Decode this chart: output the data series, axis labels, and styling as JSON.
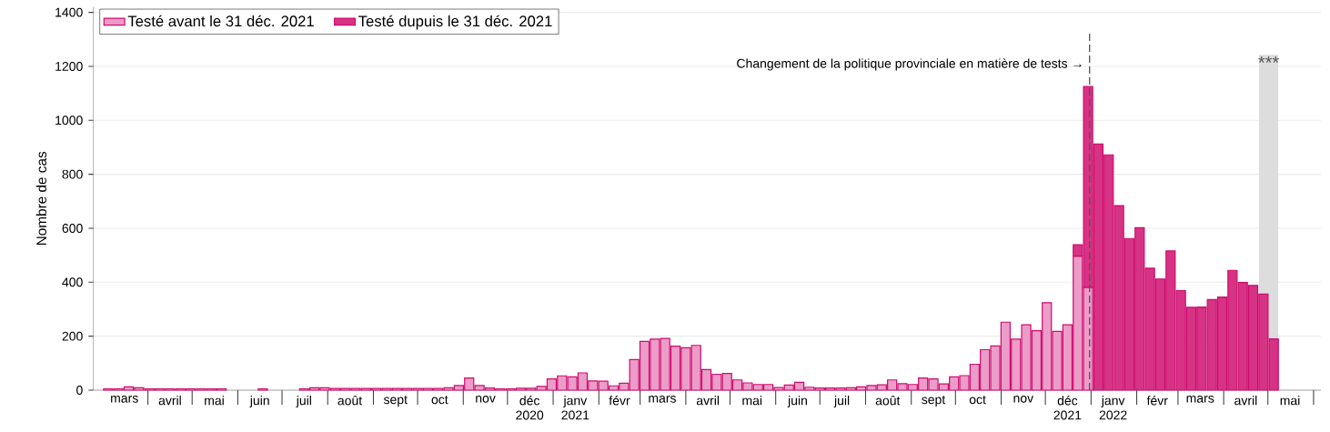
{
  "chart_data": {
    "type": "bar",
    "stacked": true,
    "ylabel": "Nombre de cas",
    "x": [
      "2020-03-05",
      "2020-03-12",
      "2020-03-19",
      "2020-03-26",
      "2020-04-02",
      "2020-04-09",
      "2020-04-16",
      "2020-04-23",
      "2020-04-30",
      "2020-05-07",
      "2020-05-14",
      "2020-05-21",
      "2020-05-28",
      "2020-06-04",
      "2020-06-11",
      "2020-06-18",
      "2020-06-25",
      "2020-07-02",
      "2020-07-09",
      "2020-07-16",
      "2020-07-23",
      "2020-07-30",
      "2020-08-06",
      "2020-08-13",
      "2020-08-20",
      "2020-08-27",
      "2020-09-03",
      "2020-09-10",
      "2020-09-17",
      "2020-09-24",
      "2020-10-01",
      "2020-10-08",
      "2020-10-15",
      "2020-10-22",
      "2020-10-29",
      "2020-11-05",
      "2020-11-12",
      "2020-11-19",
      "2020-11-26",
      "2020-12-03",
      "2020-12-10",
      "2020-12-17",
      "2020-12-24",
      "2020-12-31",
      "2021-01-07",
      "2021-01-14",
      "2021-01-21",
      "2021-01-28",
      "2021-02-04",
      "2021-02-11",
      "2021-02-18",
      "2021-02-25",
      "2021-03-04",
      "2021-03-11",
      "2021-03-18",
      "2021-03-25",
      "2021-04-01",
      "2021-04-08",
      "2021-04-15",
      "2021-04-22",
      "2021-04-29",
      "2021-05-06",
      "2021-05-13",
      "2021-05-20",
      "2021-05-27",
      "2021-06-03",
      "2021-06-10",
      "2021-06-17",
      "2021-06-24",
      "2021-07-01",
      "2021-07-08",
      "2021-07-15",
      "2021-07-22",
      "2021-07-29",
      "2021-08-05",
      "2021-08-12",
      "2021-08-19",
      "2021-08-26",
      "2021-09-02",
      "2021-09-09",
      "2021-09-16",
      "2021-09-23",
      "2021-09-30",
      "2021-10-07",
      "2021-10-14",
      "2021-10-21",
      "2021-10-28",
      "2021-11-04",
      "2021-11-11",
      "2021-11-18",
      "2021-11-25",
      "2021-12-02",
      "2021-12-09",
      "2021-12-16",
      "2021-12-23",
      "2021-12-30",
      "2022-01-06",
      "2022-01-13",
      "2022-01-20",
      "2022-01-27",
      "2022-02-03",
      "2022-02-10",
      "2022-02-17",
      "2022-02-24",
      "2022-03-03",
      "2022-03-10",
      "2022-03-17",
      "2022-03-24",
      "2022-03-31",
      "2022-04-07",
      "2022-04-14",
      "2022-04-21",
      "2022-04-28",
      "2022-05-05"
    ],
    "series": [
      {
        "name": "Testé avant le 31 déc. 2021",
        "color": "#ec9cc8",
        "values": [
          5,
          5,
          12,
          9,
          5,
          5,
          5,
          5,
          5,
          5,
          5,
          5,
          null,
          null,
          null,
          5,
          null,
          null,
          null,
          5,
          9,
          9,
          6,
          6,
          6,
          6,
          6,
          6,
          6,
          6,
          6,
          6,
          6,
          9,
          17,
          45,
          17,
          8,
          5,
          5,
          7,
          7,
          14,
          42,
          53,
          49,
          64,
          34,
          33,
          16,
          26,
          113,
          181,
          189,
          192,
          163,
          157,
          166,
          76,
          59,
          62,
          38,
          27,
          21,
          21,
          10,
          19,
          29,
          11,
          8,
          8,
          8,
          9,
          12,
          17,
          20,
          38,
          24,
          21,
          45,
          42,
          23,
          49,
          54,
          96,
          150,
          164,
          252,
          189,
          242,
          220,
          324,
          218,
          242,
          497,
          381,
          null,
          null,
          null,
          null,
          null,
          null,
          null,
          null,
          null,
          null,
          null,
          null,
          null,
          null,
          null,
          null,
          null,
          null
        ]
      },
      {
        "name": "Testé dupuis le 31 déc. 2021",
        "color": "#d63384",
        "values": [
          null,
          null,
          null,
          null,
          null,
          null,
          null,
          null,
          null,
          null,
          null,
          null,
          null,
          null,
          null,
          null,
          null,
          null,
          null,
          null,
          null,
          null,
          null,
          null,
          null,
          null,
          null,
          null,
          null,
          null,
          null,
          null,
          null,
          null,
          null,
          null,
          null,
          null,
          null,
          null,
          null,
          null,
          null,
          null,
          null,
          null,
          null,
          null,
          null,
          null,
          null,
          null,
          null,
          null,
          null,
          null,
          null,
          null,
          null,
          null,
          null,
          null,
          null,
          null,
          null,
          null,
          null,
          null,
          null,
          null,
          null,
          null,
          null,
          null,
          null,
          null,
          null,
          null,
          null,
          null,
          null,
          null,
          null,
          null,
          null,
          null,
          null,
          null,
          null,
          null,
          null,
          null,
          null,
          null,
          42,
          744,
          912,
          872,
          684,
          562,
          602,
          452,
          412,
          516,
          369,
          307,
          308,
          336,
          345,
          444,
          399,
          388,
          356,
          190
        ]
      }
    ],
    "xlim": [
      "2020-02-24",
      "2022-06-06"
    ],
    "xticks": [
      {
        "value": "2020-03-16",
        "label": "mars"
      },
      {
        "value": "2020-04-01",
        "label": null
      },
      {
        "value": "2020-04-16",
        "label": "avril"
      },
      {
        "value": "2020-05-01",
        "label": null
      },
      {
        "value": "2020-05-16",
        "label": "mai"
      },
      {
        "value": "2020-06-01",
        "label": null
      },
      {
        "value": "2020-06-16",
        "label": "juin"
      },
      {
        "value": "2020-07-01",
        "label": null
      },
      {
        "value": "2020-07-16",
        "label": "juil"
      },
      {
        "value": "2020-08-01",
        "label": null
      },
      {
        "value": "2020-08-16",
        "label": "août"
      },
      {
        "value": "2020-09-01",
        "label": null
      },
      {
        "value": "2020-09-16",
        "label": "sept"
      },
      {
        "value": "2020-10-01",
        "label": null
      },
      {
        "value": "2020-10-16",
        "label": "oct"
      },
      {
        "value": "2020-11-01",
        "label": null
      },
      {
        "value": "2020-11-16",
        "label": "nov"
      },
      {
        "value": "2020-12-01",
        "label": null
      },
      {
        "value": "2020-12-16",
        "label": "déc 2020"
      },
      {
        "value": "2021-01-01",
        "label": null
      },
      {
        "value": "2021-01-16",
        "label": "janv 2021"
      },
      {
        "value": "2021-02-01",
        "label": null
      },
      {
        "value": "2021-02-15",
        "label": "févr"
      },
      {
        "value": "2021-03-01",
        "label": null
      },
      {
        "value": "2021-03-16",
        "label": "mars"
      },
      {
        "value": "2021-04-01",
        "label": null
      },
      {
        "value": "2021-04-16",
        "label": "avril"
      },
      {
        "value": "2021-05-01",
        "label": null
      },
      {
        "value": "2021-05-16",
        "label": "mai"
      },
      {
        "value": "2021-06-01",
        "label": null
      },
      {
        "value": "2021-06-16",
        "label": "juin"
      },
      {
        "value": "2021-07-01",
        "label": null
      },
      {
        "value": "2021-07-16",
        "label": "juil"
      },
      {
        "value": "2021-08-01",
        "label": null
      },
      {
        "value": "2021-08-16",
        "label": "août"
      },
      {
        "value": "2021-09-01",
        "label": null
      },
      {
        "value": "2021-09-16",
        "label": "sept"
      },
      {
        "value": "2021-10-01",
        "label": null
      },
      {
        "value": "2021-10-16",
        "label": "oct"
      },
      {
        "value": "2021-11-01",
        "label": null
      },
      {
        "value": "2021-11-16",
        "label": "nov"
      },
      {
        "value": "2021-12-01",
        "label": null
      },
      {
        "value": "2021-12-16",
        "label": "déc 2021"
      },
      {
        "value": "2022-01-01",
        "label": null
      },
      {
        "value": "2022-01-16",
        "label": "janv 2022"
      },
      {
        "value": "2022-02-01",
        "label": null
      },
      {
        "value": "2022-02-15",
        "label": "févr"
      },
      {
        "value": "2022-03-01",
        "label": null
      },
      {
        "value": "2022-03-16",
        "label": "mars"
      },
      {
        "value": "2022-04-01",
        "label": null
      },
      {
        "value": "2022-04-16",
        "label": "avril"
      },
      {
        "value": "2022-05-01",
        "label": null
      },
      {
        "value": "2022-05-16",
        "label": "mai"
      },
      {
        "value": "2022-06-01",
        "label": null
      }
    ],
    "ylim": [
      0,
      1420
    ],
    "yticks": [
      0,
      200,
      400,
      600,
      800,
      1000,
      1200,
      1400
    ],
    "grid": "y",
    "legend": "top left",
    "ref_lines": [
      {
        "axis": "x",
        "value": "2021-12-31",
        "label": "Changement de la politique provinciale en matière de tests →",
        "color": "#555555",
        "line_style": "dashed"
      }
    ],
    "bands": [
      {
        "axis": "x",
        "from": "2022-04-25",
        "to": "2022-05-08",
        "label": "***",
        "color": "#dddddd"
      }
    ]
  }
}
